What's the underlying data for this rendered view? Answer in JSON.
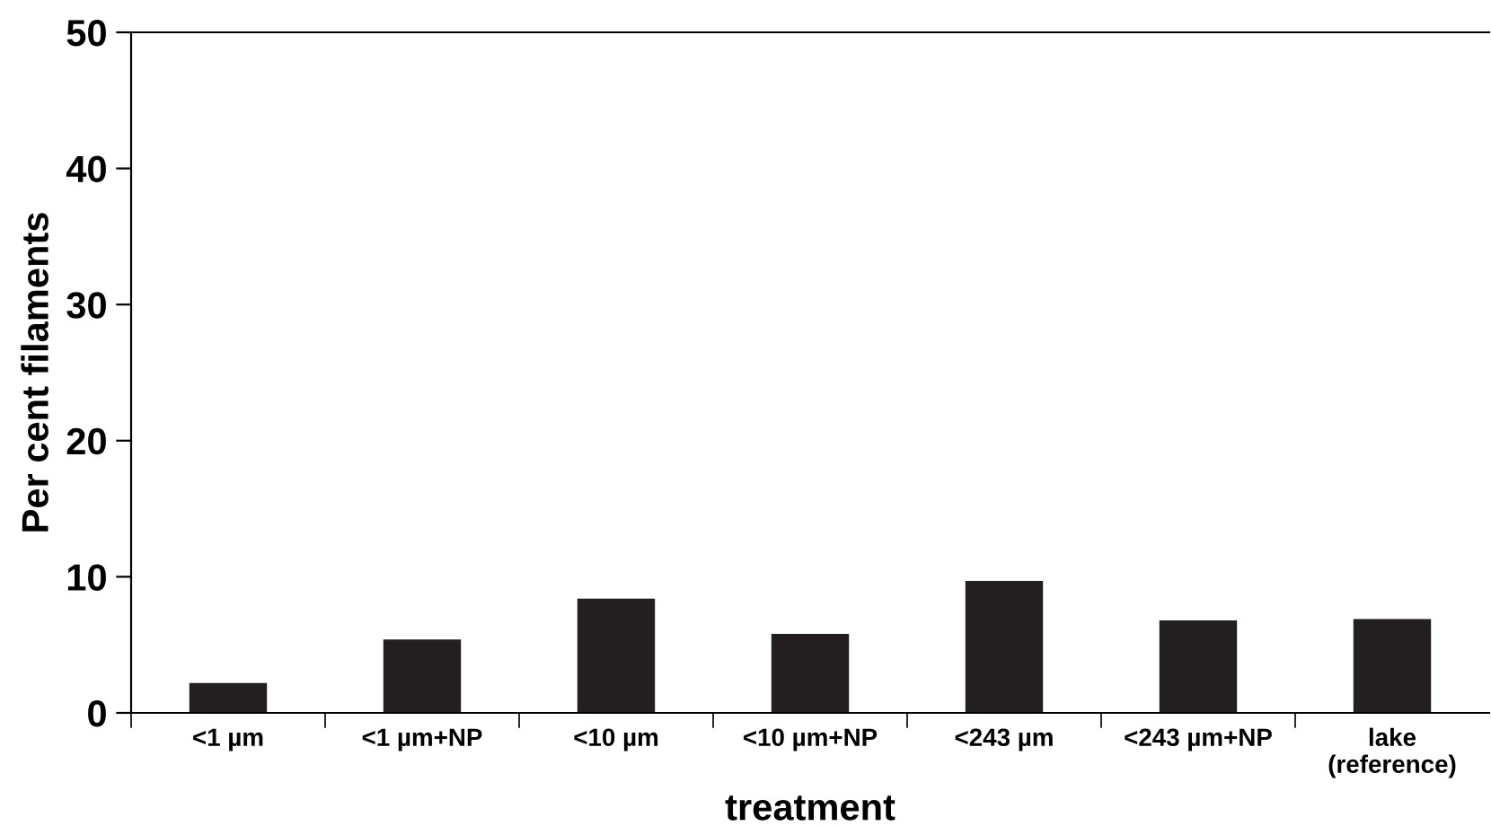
{
  "chart_data": {
    "type": "bar",
    "xlabel": "treatment",
    "ylabel": "Per cent filaments",
    "categories": [
      "<1 µm",
      "<1 µm+NP",
      "<10 µm",
      "<10 µm+NP",
      "<243 µm",
      "<243 µm+NP",
      "lake\n(reference)"
    ],
    "values": [
      2.2,
      5.4,
      8.4,
      5.8,
      9.7,
      6.8,
      6.9
    ],
    "color": "#231f20",
    "ylim": [
      0,
      50
    ],
    "yticks": [
      0,
      10,
      20,
      30,
      40,
      50
    ],
    "grid": false,
    "legend": false
  }
}
